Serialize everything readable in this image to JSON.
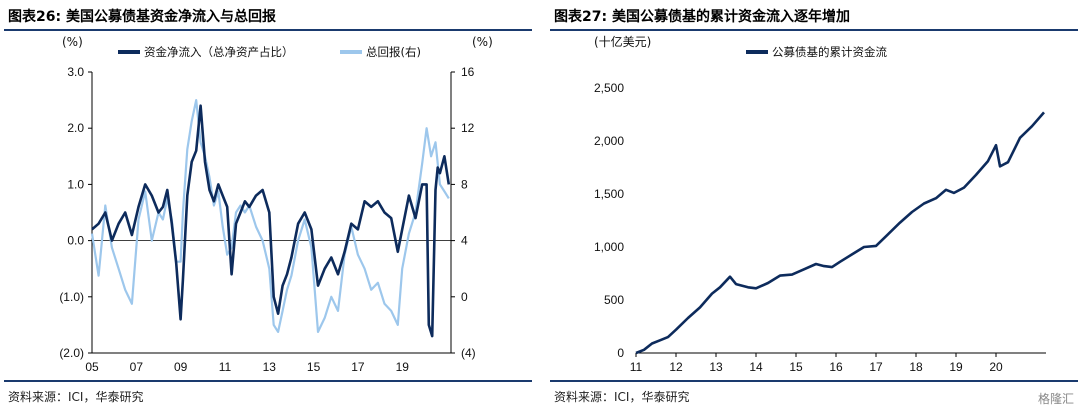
{
  "left": {
    "title": "图表26:  美国公募债基资金净流入与总回报",
    "source": "资料来源：ICI，华泰研究"
  },
  "right": {
    "title": "图表27:  美国公募债基的累计资金流入逐年增加",
    "source": "资料来源：ICI，华泰研究"
  },
  "watermark": "格隆汇",
  "chart_data": [
    {
      "type": "line",
      "title": "",
      "ylabel": "(%)",
      "y2label": "(%)",
      "ylim": [
        -2.0,
        3.0
      ],
      "y2lim": [
        -4,
        16
      ],
      "yticks": [
        "(2.0)",
        "(1.0)",
        "0.0",
        "1.0",
        "2.0",
        "3.0"
      ],
      "y2ticks": [
        "(4)",
        "0",
        "4",
        "8",
        "12",
        "16"
      ],
      "xticks": [
        "05",
        "07",
        "09",
        "11",
        "13",
        "15",
        "17",
        "19"
      ],
      "xlim": [
        2005,
        2021.2
      ],
      "legend_position": "top",
      "grid": false,
      "series": [
        {
          "name": "资金净流入（总净资产占比）",
          "axis": "left",
          "color": "#0d2b5c",
          "x": [
            2005.0,
            2005.3,
            2005.6,
            2005.9,
            2006.2,
            2006.5,
            2006.8,
            2007.1,
            2007.4,
            2007.7,
            2008.0,
            2008.2,
            2008.4,
            2008.6,
            2008.8,
            2009.0,
            2009.1,
            2009.3,
            2009.5,
            2009.7,
            2009.9,
            2010.1,
            2010.3,
            2010.5,
            2010.7,
            2010.9,
            2011.1,
            2011.3,
            2011.5,
            2011.7,
            2011.9,
            2012.1,
            2012.4,
            2012.7,
            2013.0,
            2013.2,
            2013.4,
            2013.6,
            2013.8,
            2014.0,
            2014.3,
            2014.6,
            2014.9,
            2015.2,
            2015.5,
            2015.8,
            2016.1,
            2016.4,
            2016.7,
            2017.0,
            2017.3,
            2017.6,
            2017.9,
            2018.2,
            2018.5,
            2018.8,
            2019.0,
            2019.3,
            2019.6,
            2019.9,
            2020.1,
            2020.2,
            2020.35,
            2020.5,
            2020.6,
            2020.7,
            2020.9,
            2021.1
          ],
          "values": [
            0.2,
            0.3,
            0.5,
            0.0,
            0.3,
            0.5,
            0.1,
            0.6,
            1.0,
            0.8,
            0.5,
            0.6,
            0.9,
            0.3,
            -0.4,
            -1.4,
            -0.7,
            0.8,
            1.4,
            1.6,
            2.4,
            1.4,
            0.9,
            0.7,
            1.0,
            0.8,
            0.6,
            -0.6,
            0.3,
            0.5,
            0.7,
            0.6,
            0.8,
            0.9,
            0.5,
            -1.0,
            -1.3,
            -0.8,
            -0.6,
            -0.3,
            0.3,
            0.5,
            0.2,
            -0.8,
            -0.5,
            -0.3,
            -0.6,
            -0.2,
            0.3,
            0.2,
            0.7,
            0.6,
            0.7,
            0.5,
            0.4,
            -0.2,
            0.2,
            0.8,
            0.4,
            1.0,
            1.0,
            -1.5,
            -1.7,
            0.9,
            1.3,
            1.2,
            1.5,
            1.0
          ]
        },
        {
          "name": "总回报(右)",
          "axis": "right",
          "color": "#9dc7ec",
          "x": [
            2005.0,
            2005.3,
            2005.6,
            2005.9,
            2006.2,
            2006.5,
            2006.8,
            2007.1,
            2007.4,
            2007.7,
            2008.0,
            2008.2,
            2008.4,
            2008.6,
            2008.8,
            2009.0,
            2009.1,
            2009.3,
            2009.5,
            2009.7,
            2009.9,
            2010.1,
            2010.3,
            2010.5,
            2010.7,
            2010.9,
            2011.1,
            2011.3,
            2011.5,
            2011.7,
            2011.9,
            2012.1,
            2012.4,
            2012.7,
            2013.0,
            2013.2,
            2013.4,
            2013.6,
            2013.8,
            2014.0,
            2014.3,
            2014.6,
            2014.9,
            2015.2,
            2015.5,
            2015.8,
            2016.1,
            2016.4,
            2016.7,
            2017.0,
            2017.3,
            2017.6,
            2017.9,
            2018.2,
            2018.5,
            2018.8,
            2019.0,
            2019.3,
            2019.6,
            2019.9,
            2020.1,
            2020.3,
            2020.5,
            2020.7,
            2020.9,
            2021.1
          ],
          "values": [
            4.5,
            1.5,
            6.5,
            3.5,
            2.0,
            0.5,
            -0.5,
            5.5,
            7.5,
            4.0,
            6.0,
            5.5,
            7.0,
            5.5,
            2.5,
            2.5,
            6.0,
            10.5,
            12.5,
            14.0,
            11.0,
            10.0,
            8.5,
            6.5,
            7.5,
            5.0,
            3.0,
            3.5,
            6.0,
            6.5,
            6.0,
            6.5,
            5.0,
            4.0,
            2.0,
            -2.0,
            -2.5,
            -1.0,
            0.5,
            1.5,
            4.0,
            5.5,
            3.5,
            -2.5,
            -1.5,
            0.0,
            -1.0,
            3.0,
            5.0,
            3.0,
            2.0,
            0.5,
            1.0,
            -0.5,
            -1.0,
            -2.0,
            2.0,
            4.5,
            6.0,
            9.5,
            12.0,
            10.0,
            11.0,
            8.0,
            7.5,
            7.0
          ]
        }
      ]
    },
    {
      "type": "line",
      "title": "",
      "ylabel": "(十亿美元)",
      "ylim": [
        0,
        2500
      ],
      "yticks": [
        "0",
        "500",
        "1,000",
        "1,500",
        "2,000",
        "2,500"
      ],
      "xticks": [
        "11",
        "12",
        "13",
        "14",
        "15",
        "16",
        "17",
        "18",
        "19",
        "20"
      ],
      "xlim": [
        2011,
        2021.25
      ],
      "legend_position": "top",
      "grid": false,
      "series": [
        {
          "name": "公募债基的累计资金流",
          "color": "#0d2b5c",
          "x": [
            2011.0,
            2011.2,
            2011.4,
            2011.6,
            2011.8,
            2012.0,
            2012.3,
            2012.6,
            2012.9,
            2013.1,
            2013.35,
            2013.5,
            2013.8,
            2014.0,
            2014.3,
            2014.6,
            2014.9,
            2015.2,
            2015.5,
            2015.7,
            2015.9,
            2016.1,
            2016.4,
            2016.7,
            2017.0,
            2017.3,
            2017.6,
            2017.9,
            2018.2,
            2018.5,
            2018.75,
            2018.95,
            2019.2,
            2019.5,
            2019.8,
            2020.0,
            2020.1,
            2020.3,
            2020.6,
            2020.9,
            2021.2
          ],
          "values": [
            0,
            30,
            90,
            120,
            150,
            220,
            330,
            430,
            560,
            620,
            720,
            650,
            620,
            610,
            660,
            730,
            740,
            790,
            840,
            820,
            810,
            860,
            930,
            1000,
            1010,
            1120,
            1230,
            1330,
            1410,
            1460,
            1540,
            1510,
            1560,
            1680,
            1810,
            1960,
            1760,
            1800,
            2030,
            2140,
            2270
          ]
        }
      ]
    }
  ]
}
